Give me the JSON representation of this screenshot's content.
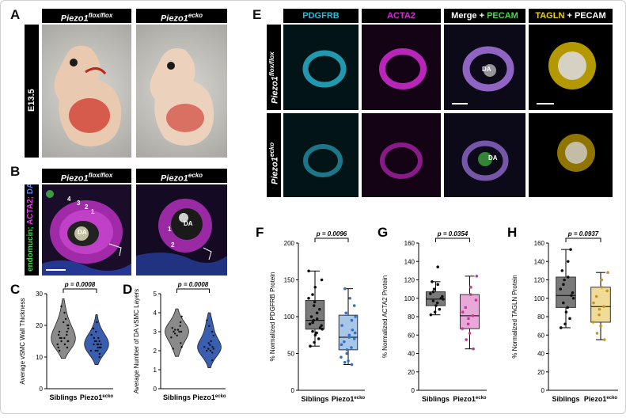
{
  "panels": {
    "A": {
      "letter": "A",
      "hdr1": "Piezo1",
      "hdr1_sup": "flox/flox",
      "hdr2": "Piezo1",
      "hdr2_sup": "ecko",
      "stage": "E13.5"
    },
    "B": {
      "letter": "B",
      "hdr1": "Piezo1",
      "hdr1_sup": "flox/flox",
      "hdr2": "Piezo1",
      "hdr2_sup": "ecko",
      "side_label_1": "endomucin; ",
      "side_label_2": "ACTA2; ",
      "side_label_3": "DAPI",
      "da": "DA",
      "layers_flox": [
        "4",
        "3",
        "2",
        "1"
      ],
      "layers_ecko": [
        "1",
        "2"
      ]
    },
    "E": {
      "letter": "E",
      "col1": "PDGFRB",
      "col2": "ACTA2",
      "col3a": "Merge + ",
      "col3b": "PECAM",
      "col4a": "TAGLN",
      "col4b": " + PECAM",
      "row1": "Piezo1",
      "row1_sup": "flox/flox",
      "row2": "Piezo1",
      "row2_sup": "ecko",
      "da": "DA"
    }
  },
  "colors": {
    "cyan": "#2bb9d6",
    "magenta": "#d62bd6",
    "green": "#4cd64c",
    "yellow": "#f0d400",
    "grey": "#5a5a5a",
    "blue": "#3a5fb0",
    "pink": "#c85aa0",
    "gold": "#d8b84a"
  },
  "chart_data": [
    {
      "panel": "C",
      "type": "violin",
      "categories": [
        "Siblings",
        "Piezo1"
      ],
      "category_sup": [
        "",
        "ecko"
      ],
      "ylabel": "Average vSMC Wall Thickness",
      "ylim": [
        0,
        30
      ],
      "yticks": [
        0,
        10,
        20,
        30
      ],
      "pvalue": "p = 0.0008",
      "series": [
        {
          "values": [
            12,
            13,
            14,
            15,
            15,
            16,
            16,
            17,
            17,
            18,
            19,
            20,
            21,
            22,
            24,
            26,
            13,
            14,
            18,
            20,
            16,
            15
          ]
        },
        {
          "values": [
            10,
            11,
            12,
            12,
            13,
            13,
            14,
            14,
            14,
            15,
            15,
            16,
            16,
            17,
            18,
            19,
            21,
            13,
            14,
            15,
            12,
            16
          ]
        }
      ]
    },
    {
      "panel": "D",
      "type": "violin",
      "categories": [
        "Siblings",
        "Piezo1"
      ],
      "category_sup": [
        "",
        "ecko"
      ],
      "ylabel": "Average Number of DA vSMC Layers",
      "ylim": [
        0,
        5
      ],
      "yticks": [
        0,
        1,
        2,
        3,
        4,
        5
      ],
      "pvalue": "p = 0.0008",
      "series": [
        {
          "values": [
            2.1,
            2.4,
            2.7,
            2.9,
            3.0,
            3.0,
            3.1,
            3.2,
            3.3,
            3.5,
            3.8,
            2.2,
            2.8,
            3.0,
            3.1
          ]
        },
        {
          "values": [
            1.5,
            1.9,
            2.0,
            2.1,
            2.1,
            2.2,
            2.3,
            2.5,
            2.8,
            3.0,
            3.3,
            3.6,
            2.0,
            2.2,
            2.4
          ]
        }
      ]
    },
    {
      "panel": "F",
      "type": "box",
      "categories": [
        "Siblings",
        "Piezo1"
      ],
      "category_sup": [
        "",
        "ecko"
      ],
      "ylabel": "% Normalized PDGFRB Protein",
      "ylim": [
        0,
        200
      ],
      "yticks": [
        0,
        50,
        100,
        150,
        200
      ],
      "pvalue": "p = 0.0096",
      "series": [
        {
          "q1": 83,
          "median": 95,
          "q3": 122,
          "min": 60,
          "max": 162,
          "values": [
            60,
            65,
            70,
            75,
            78,
            80,
            83,
            85,
            88,
            90,
            92,
            95,
            97,
            100,
            105,
            110,
            115,
            120,
            125,
            130,
            140,
            150,
            162
          ]
        },
        {
          "q1": 55,
          "median": 72,
          "q3": 102,
          "min": 35,
          "max": 138,
          "values": [
            35,
            38,
            40,
            45,
            50,
            55,
            58,
            62,
            66,
            70,
            72,
            75,
            78,
            82,
            88,
            95,
            100,
            105,
            115,
            125,
            138
          ]
        }
      ]
    },
    {
      "panel": "G",
      "type": "box",
      "categories": [
        "Siblings",
        "Piezo1"
      ],
      "category_sup": [
        "",
        "ecko"
      ],
      "ylabel": "% Normalized ACTA2 Protein",
      "ylim": [
        0,
        160
      ],
      "yticks": [
        0,
        20,
        40,
        60,
        80,
        100,
        120,
        140,
        160
      ],
      "pvalue": "p = 0.0354",
      "series": [
        {
          "q1": 92,
          "median": 99,
          "q3": 107,
          "min": 82,
          "max": 118,
          "values": [
            82,
            85,
            88,
            92,
            95,
            97,
            99,
            100,
            102,
            105,
            107,
            110,
            115,
            118,
            134
          ]
        },
        {
          "q1": 67,
          "median": 81,
          "q3": 104,
          "min": 45,
          "max": 124,
          "values": [
            45,
            55,
            62,
            67,
            72,
            78,
            81,
            85,
            90,
            98,
            104,
            112,
            124
          ]
        }
      ]
    },
    {
      "panel": "H",
      "type": "box",
      "categories": [
        "Siblings",
        "Piezo1"
      ],
      "category_sup": [
        "",
        "ecko"
      ],
      "ylabel": "% Normalized TAGLN Protein",
      "ylim": [
        0,
        160
      ],
      "yticks": [
        0,
        20,
        40,
        60,
        80,
        100,
        120,
        140,
        160
      ],
      "pvalue": "p = 0.0937",
      "series": [
        {
          "q1": 90,
          "median": 103,
          "q3": 123,
          "min": 68,
          "max": 153,
          "values": [
            68,
            72,
            78,
            85,
            90,
            95,
            100,
            103,
            106,
            110,
            115,
            120,
            123,
            130,
            140,
            153
          ]
        },
        {
          "q1": 74,
          "median": 91,
          "q3": 112,
          "min": 55,
          "max": 128,
          "values": [
            55,
            62,
            70,
            74,
            82,
            88,
            91,
            95,
            102,
            108,
            112,
            120,
            128
          ]
        }
      ]
    }
  ]
}
